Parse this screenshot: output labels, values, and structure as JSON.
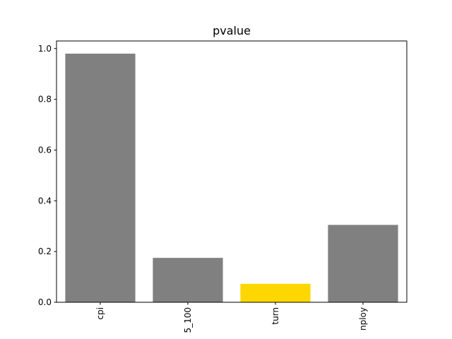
{
  "chart_data": {
    "type": "bar",
    "title": "pvalue",
    "xlabel": "",
    "ylabel": "",
    "categories": [
      "cpi",
      "5_100",
      "turn",
      "nploy"
    ],
    "values": [
      0.98,
      0.175,
      0.073,
      0.305
    ],
    "bar_colors": [
      "#808080",
      "#808080",
      "#FFD700",
      "#808080"
    ],
    "ylim": [
      0,
      1.03
    ],
    "yticks": [
      0.0,
      0.2,
      0.4,
      0.6,
      0.8,
      1.0
    ],
    "ytick_labels": [
      "0.0",
      "0.2",
      "0.4",
      "0.6",
      "0.8",
      "1.0"
    ],
    "grid": false,
    "legend": "none"
  }
}
